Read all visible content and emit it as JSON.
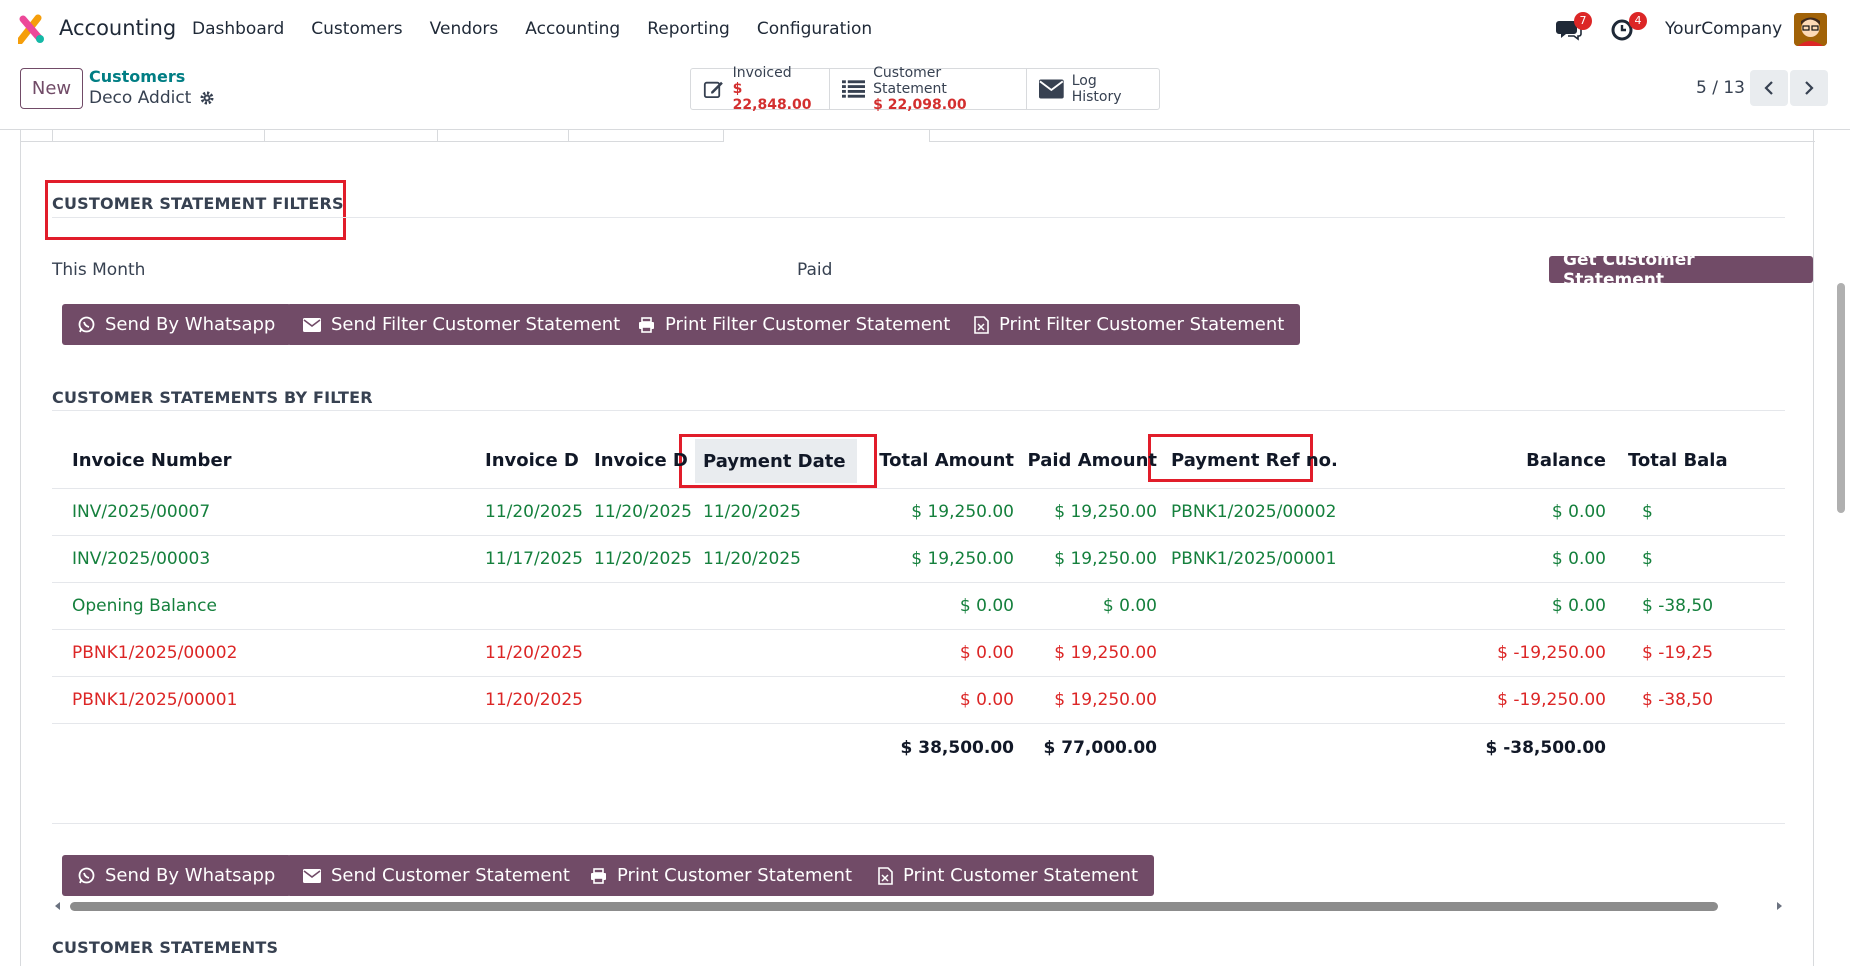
{
  "nav": {
    "app_name": "Accounting",
    "menu": [
      "Dashboard",
      "Customers",
      "Vendors",
      "Accounting",
      "Reporting",
      "Configuration"
    ],
    "messages_count": "7",
    "activities_count": "4",
    "company": "YourCompany"
  },
  "control": {
    "new_label": "New",
    "breadcrumb_parent": "Customers",
    "record_name": "Deco Addict",
    "smart_buttons": [
      {
        "label": "Invoiced",
        "value": "$ 22,848.00",
        "icon": "pencil-square-icon"
      },
      {
        "label": "Customer Statement",
        "value": "$ 22,098.00",
        "icon": "list-icon"
      },
      {
        "label": "Log History",
        "icon": "envelope-icon"
      }
    ],
    "pager": "5 / 13"
  },
  "filters": {
    "title": "CUSTOMER STATEMENT FILTERS",
    "period": "This Month",
    "status": "Paid",
    "get_button": "Get Customer Statement",
    "buttons": [
      "Send By Whatsapp",
      "Send Filter Customer Statement",
      "Print Filter Customer Statement",
      "Print Filter Customer Statement"
    ]
  },
  "by_filter": {
    "title": "CUSTOMER STATEMENTS BY FILTER",
    "columns": [
      "Invoice Number",
      "Invoice D...",
      "Invoice D...",
      "Payment Date",
      "Total Amount",
      "Paid Amount",
      "Payment Ref no.",
      "Balance",
      "Total Bala"
    ],
    "rows": [
      {
        "status": "green",
        "cells": [
          "INV/2025/00007",
          "11/20/2025",
          "11/20/2025",
          "11/20/2025",
          "$ 19,250.00",
          "$ 19,250.00",
          "PBNK1/2025/00002",
          "$ 0.00",
          "$"
        ]
      },
      {
        "status": "green",
        "cells": [
          "INV/2025/00003",
          "11/17/2025",
          "11/20/2025",
          "11/20/2025",
          "$ 19,250.00",
          "$ 19,250.00",
          "PBNK1/2025/00001",
          "$ 0.00",
          "$"
        ]
      },
      {
        "status": "green",
        "cells": [
          "Opening Balance",
          "",
          "",
          "",
          "$ 0.00",
          "$ 0.00",
          "",
          "$ 0.00",
          "$ -38,50"
        ]
      },
      {
        "status": "red",
        "cells": [
          "PBNK1/2025/00002",
          "11/20/2025",
          "",
          "",
          "$ 0.00",
          "$ 19,250.00",
          "",
          "$ -19,250.00",
          "$ -19,25"
        ]
      },
      {
        "status": "red",
        "cells": [
          "PBNK1/2025/00001",
          "11/20/2025",
          "",
          "",
          "$ 0.00",
          "$ 19,250.00",
          "",
          "$ -19,250.00",
          "$ -38,50"
        ]
      }
    ],
    "totals": [
      "",
      "",
      "",
      "",
      "$ 38,500.00",
      "$ 77,000.00",
      "",
      "$ -38,500.00",
      ""
    ]
  },
  "statements": {
    "buttons": [
      "Send By Whatsapp",
      "Send Customer Statement",
      "Print Customer Statement",
      "Print Customer Statement"
    ],
    "title": "CUSTOMER STATEMENTS"
  },
  "colors": {
    "primary": "#714b67",
    "positive": "#15803d",
    "negative": "#dc2626",
    "highlight": "#e11d2a"
  }
}
